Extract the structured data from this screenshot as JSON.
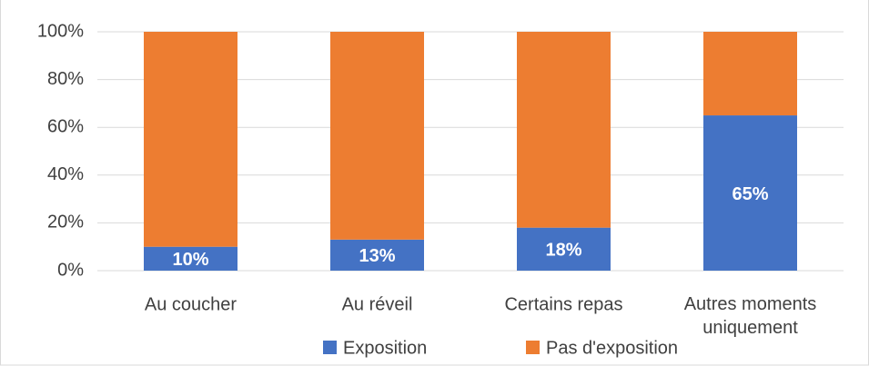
{
  "chart_data": {
    "type": "stacked_bar",
    "categories": [
      "Au coucher",
      "Au réveil",
      "Certains repas",
      "Autres moments uniquement"
    ],
    "series": [
      {
        "name": "Exposition",
        "color": "#4472c4",
        "values": [
          10,
          13,
          18,
          65
        ],
        "value_labels": [
          "10%",
          "13%",
          "18%",
          "65%"
        ]
      },
      {
        "name": "Pas d'exposition",
        "color": "#ed7d31",
        "values": [
          90,
          87,
          82,
          35
        ]
      }
    ],
    "ylim": [
      0,
      100
    ],
    "yticks": [
      {
        "value": 0,
        "label": "0%"
      },
      {
        "value": 20,
        "label": "20%"
      },
      {
        "value": 40,
        "label": "40%"
      },
      {
        "value": 60,
        "label": "60%"
      },
      {
        "value": 80,
        "label": "80%"
      },
      {
        "value": 100,
        "label": "100%"
      }
    ],
    "grid": true,
    "legend": "bottom"
  }
}
